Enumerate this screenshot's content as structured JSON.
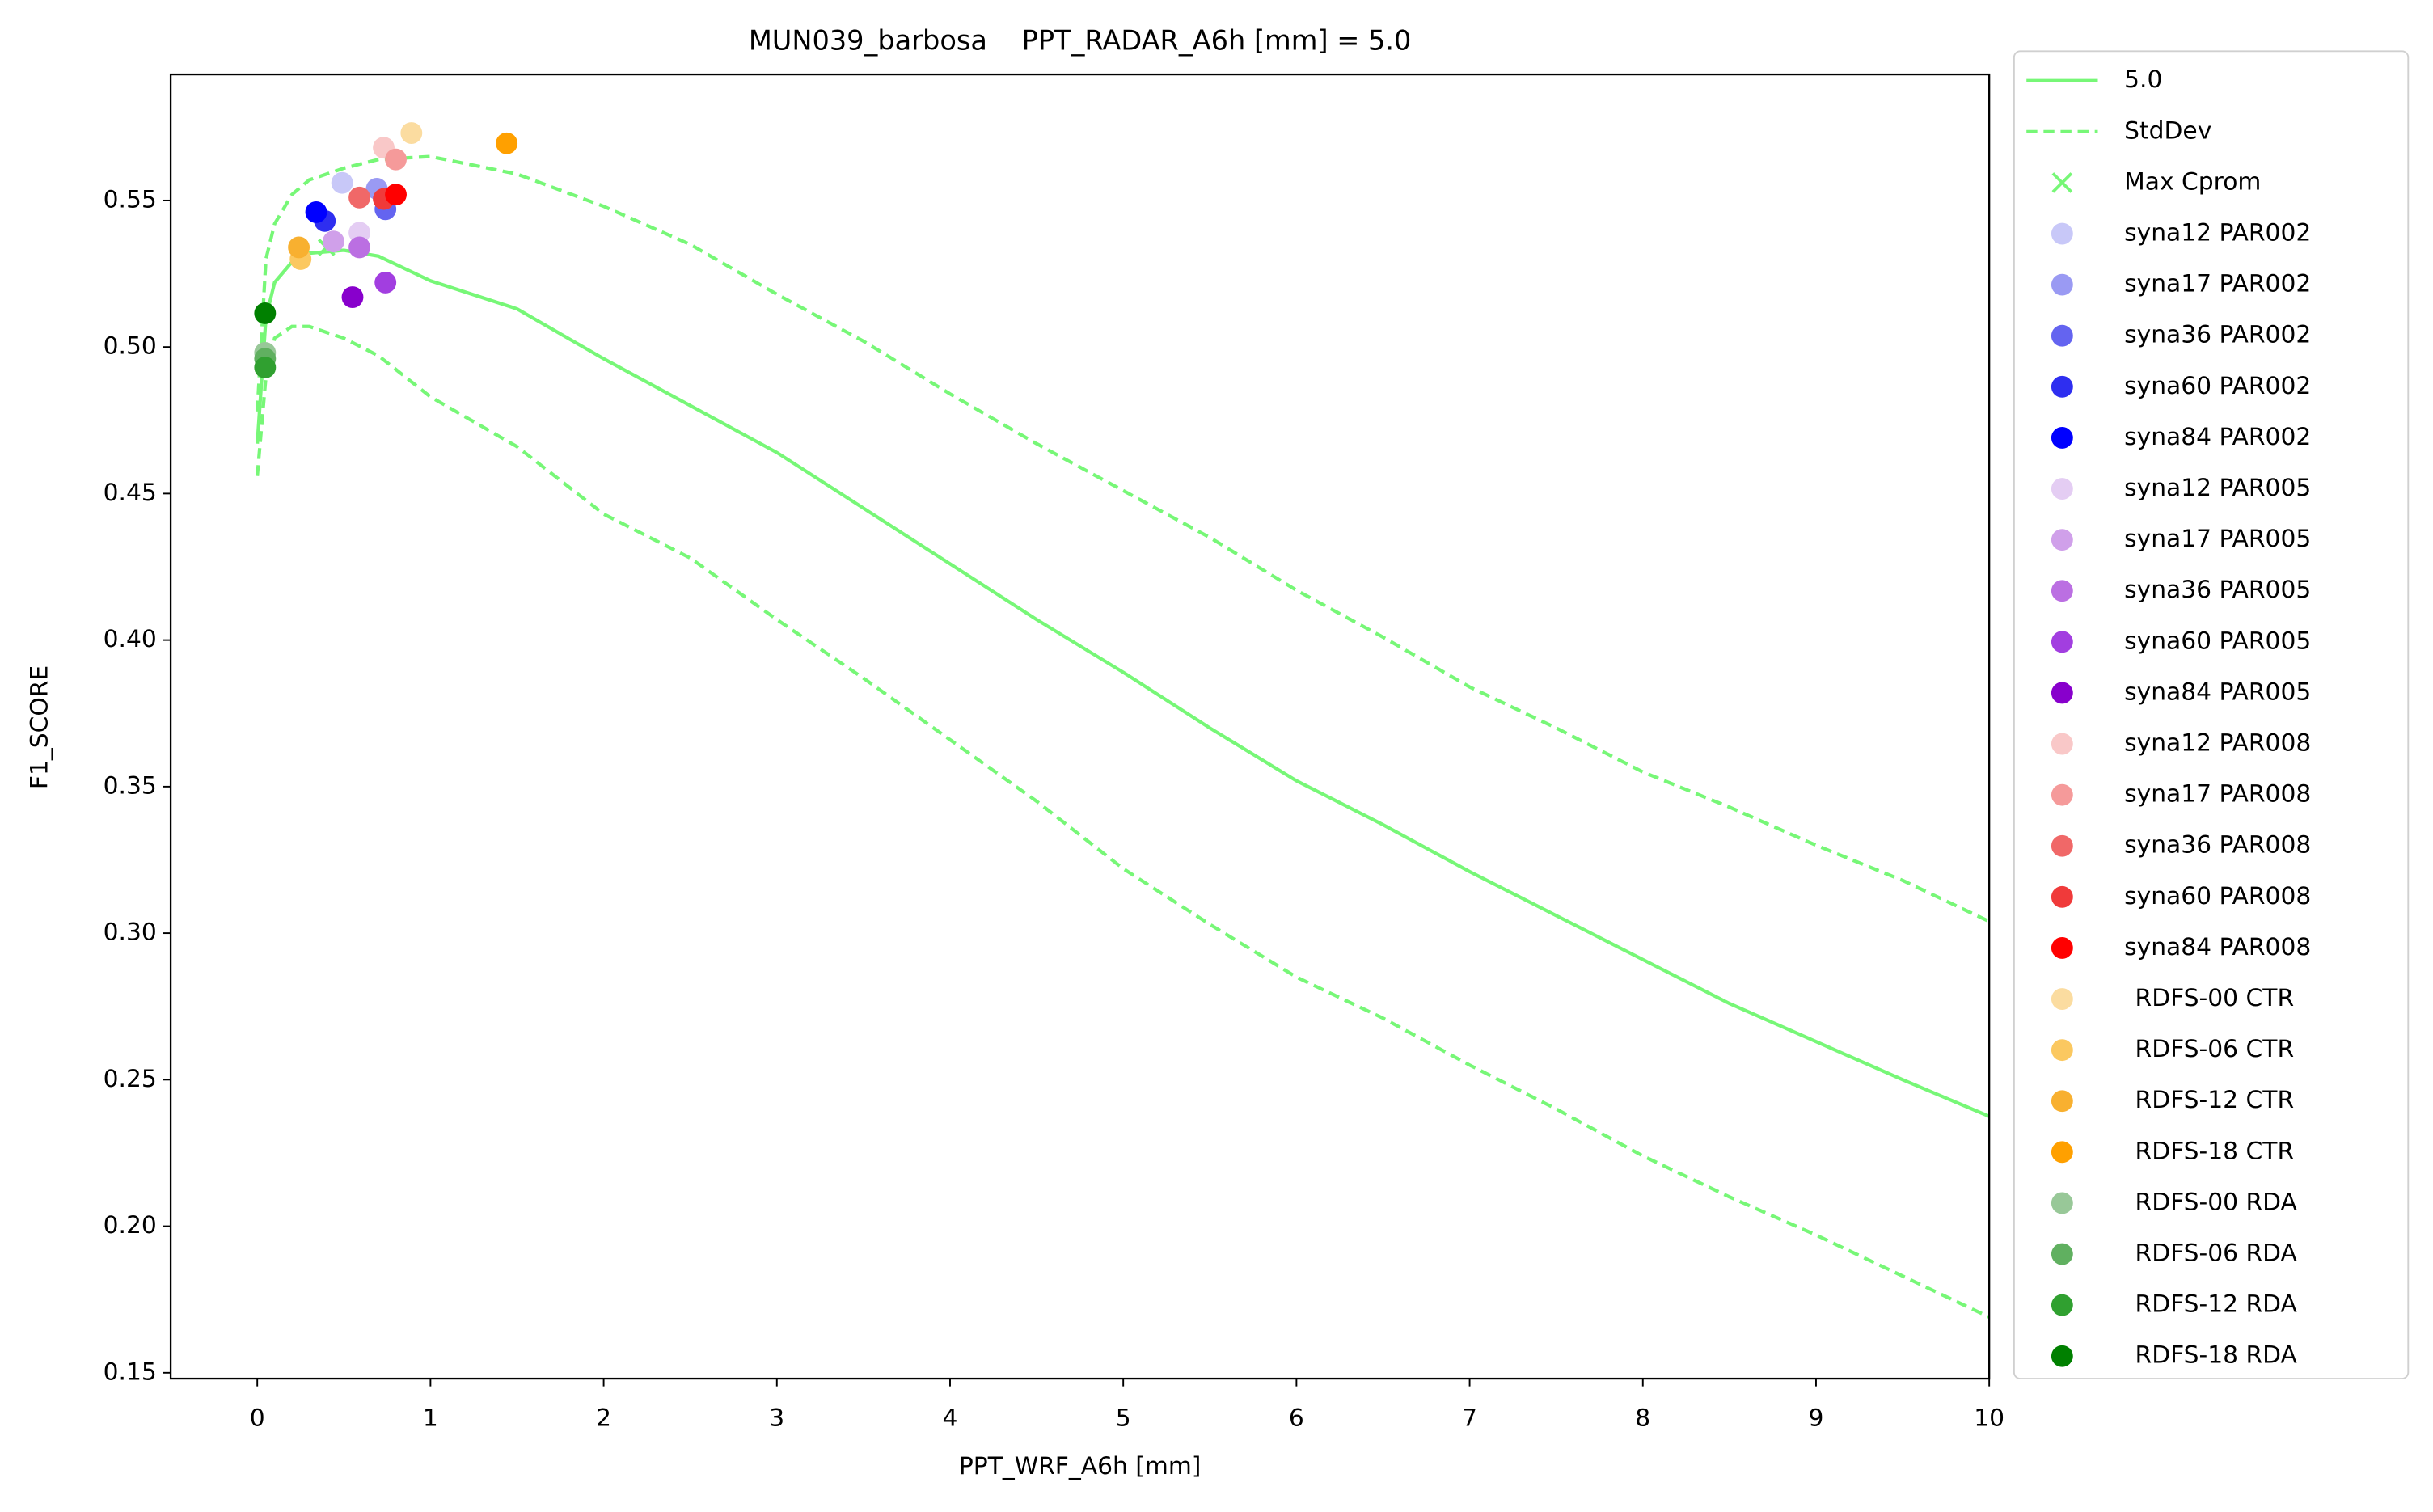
{
  "chart_data": {
    "type": "line",
    "title": "MUN039_barbosa    PPT_RADAR_A6h [mm] = 5.0",
    "x_label": "PPT_WRF_A6h [mm]",
    "y_label": "F1_SCORE",
    "xlim": [
      -0.5,
      10
    ],
    "ylim": [
      0.148,
      0.593
    ],
    "xticks": [
      0,
      1,
      2,
      3,
      4,
      5,
      6,
      7,
      8,
      9,
      10
    ],
    "yticks": [
      0.15,
      {
        "value": 0.2,
        "label": "0.20"
      },
      0.25,
      {
        "value": 0.3,
        "label": "0.30"
      },
      0.35,
      {
        "value": 0.4,
        "label": "0.40"
      },
      0.45,
      {
        "value": 0.5,
        "label": "0.50"
      },
      0.55
    ],
    "legend": "outside-right",
    "x": [
      0,
      0.05,
      0.1,
      0.2,
      0.3,
      0.5,
      0.7,
      1,
      1.5,
      2,
      2.5,
      3,
      3.5,
      4,
      4.5,
      5,
      5.5,
      6,
      6.5,
      7,
      7.5,
      8,
      8.5,
      9,
      9.5,
      10
    ],
    "series": [
      {
        "name": "5.0",
        "color": "#77f777",
        "values": [
          0.467,
          0.51,
          0.522,
          0.529,
          0.532,
          0.533,
          0.531,
          0.5226,
          0.513,
          0.496,
          0.48,
          0.464,
          0.445,
          0.426,
          0.407,
          0.389,
          0.37,
          0.352,
          0.337,
          0.321,
          0.306,
          0.291,
          0.276,
          0.263,
          0.25,
          0.2375
        ]
      }
    ],
    "stddev": {
      "name": "StdDev",
      "color": "#77f777",
      "upper": [
        0.478,
        0.53,
        0.542,
        0.552,
        0.557,
        0.561,
        0.564,
        0.565,
        0.559,
        0.548,
        0.535,
        0.518,
        0.502,
        0.484,
        0.467,
        0.451,
        0.435,
        0.417,
        0.401,
        0.384,
        0.37,
        0.355,
        0.343,
        0.33,
        0.318,
        0.304
      ],
      "lower": [
        0.456,
        0.49,
        0.503,
        0.507,
        0.507,
        0.503,
        0.497,
        0.483,
        0.466,
        0.443,
        0.428,
        0.407,
        0.387,
        0.366,
        0.345,
        0.322,
        0.303,
        0.285,
        0.271,
        0.255,
        0.24,
        0.224,
        0.21,
        0.197,
        0.183,
        0.169
      ]
    },
    "max_marker": {
      "name": "Max Cprom",
      "color": "#77f777",
      "x": 0.4,
      "y": 0.534
    },
    "points": [
      {
        "name": "syna12 PAR002",
        "color": "#c8c8f8",
        "x": 0.49,
        "y": 0.556
      },
      {
        "name": "syna17 PAR002",
        "color": "#9a9af3",
        "x": 0.69,
        "y": 0.554
      },
      {
        "name": "syna36 PAR002",
        "color": "#6464f0",
        "x": 0.74,
        "y": 0.547
      },
      {
        "name": "syna60 PAR002",
        "color": "#2e2ef0",
        "x": 0.39,
        "y": 0.543
      },
      {
        "name": "syna84 PAR002",
        "color": "#0000ff",
        "x": 0.34,
        "y": 0.546
      },
      {
        "name": "syna12 PAR005",
        "color": "#e4cdf3",
        "x": 0.59,
        "y": 0.539
      },
      {
        "name": "syna17 PAR005",
        "color": "#d0a0ea",
        "x": 0.44,
        "y": 0.536
      },
      {
        "name": "syna36 PAR005",
        "color": "#bb6fe2",
        "x": 0.59,
        "y": 0.534
      },
      {
        "name": "syna60 PAR005",
        "color": "#a23ee0",
        "x": 0.74,
        "y": 0.522
      },
      {
        "name": "syna84 PAR005",
        "color": "#8800cc",
        "x": 0.55,
        "y": 0.517
      },
      {
        "name": "syna12 PAR008",
        "color": "#f9c8c8",
        "x": 0.73,
        "y": 0.568
      },
      {
        "name": "syna17 PAR008",
        "color": "#f59a9a",
        "x": 0.8,
        "y": 0.564
      },
      {
        "name": "syna36 PAR008",
        "color": "#f06868",
        "x": 0.59,
        "y": 0.551
      },
      {
        "name": "syna60 PAR008",
        "color": "#f03a3a",
        "x": 0.73,
        "y": 0.5505
      },
      {
        "name": "syna84 PAR008",
        "color": "#ff0000",
        "x": 0.8,
        "y": 0.552
      },
      {
        "name": "RDFS-00 CTR",
        "color": "#fbdca0",
        "x": 0.89,
        "y": 0.573
      },
      {
        "name": "RDFS-06 CTR",
        "color": "#fbc860",
        "x": 0.25,
        "y": 0.53
      },
      {
        "name": "RDFS-12 CTR",
        "color": "#f8b030",
        "x": 0.24,
        "y": 0.534
      },
      {
        "name": "RDFS-18 CTR",
        "color": "#ffa000",
        "x": 1.44,
        "y": 0.5695
      },
      {
        "name": "RDFS-00 RDA",
        "color": "#98c898",
        "x": 0.045,
        "y": 0.498
      },
      {
        "name": "RDFS-06 RDA",
        "color": "#60b060",
        "x": 0.045,
        "y": 0.496
      },
      {
        "name": "RDFS-12 RDA",
        "color": "#30a030",
        "x": 0.045,
        "y": 0.493
      },
      {
        "name": "RDFS-18 RDA",
        "color": "#008000",
        "x": 0.045,
        "y": 0.5115
      }
    ]
  }
}
